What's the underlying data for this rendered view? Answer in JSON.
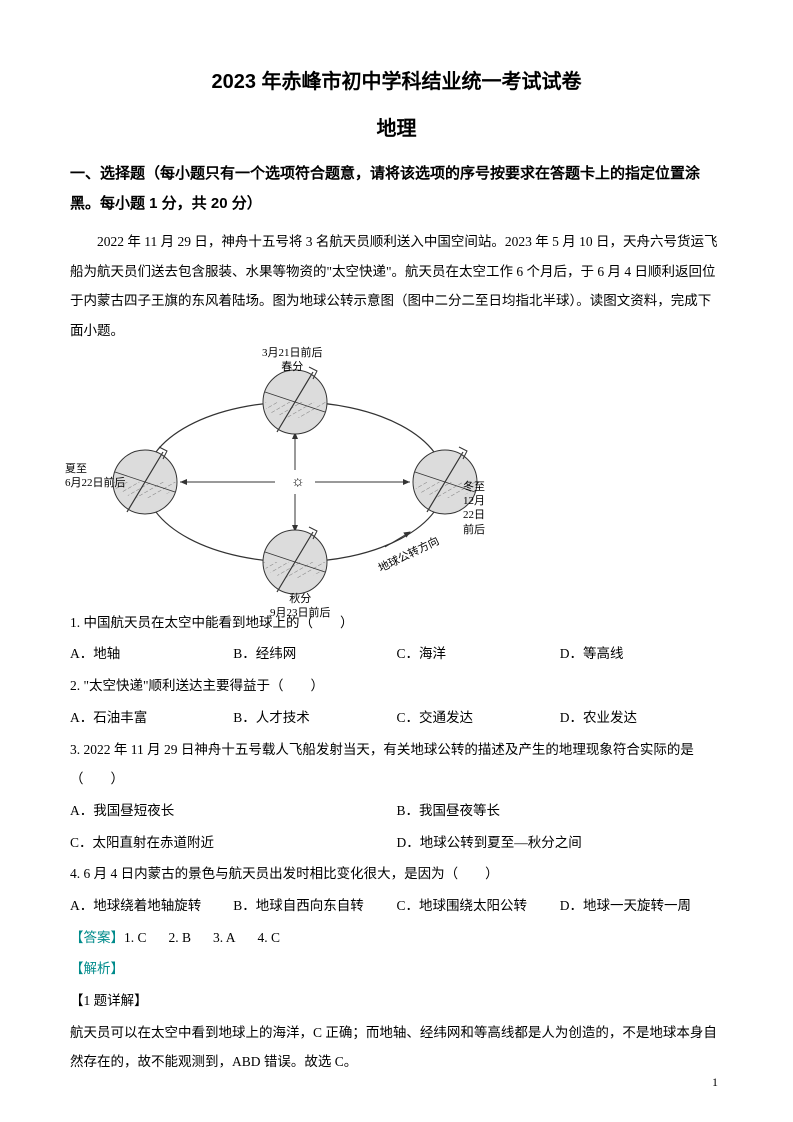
{
  "title_main": "2023 年赤峰市初中学科结业统一考试试卷",
  "title_sub": "地理",
  "section_title": "一、选择题（每小题只有一个选项符合题意，请将该选项的序号按要求在答题卡上的指定位置涂黑。每小题 1 分，共 20 分）",
  "passage": "2022 年 11 月 29 日，神舟十五号将 3 名航天员顺利送入中国空间站。2023 年 5 月 10 日，天舟六号货运飞船为航天员们送去包含服装、水果等物资的\"太空快递\"。航天员在太空工作 6 个月后，于 6 月 4 日顺利返回位于内蒙古四子王旗的东风着陆场。图为地球公转示意图（图中二分二至日均指北半球）。读图文资料，完成下面小题。",
  "diagram": {
    "labels": {
      "top": "3月21日前后\n春分",
      "left": "夏至\n6月22日前后",
      "right": "冬至\n12月22日前后",
      "bottom": "秋分\n9月23日前后",
      "orbit_direction": "地球公转方向"
    },
    "colors": {
      "globe_fill": "#d0d0d0",
      "line": "#333333"
    }
  },
  "q1": {
    "text": "1. 中国航天员在太空中能看到地球上的（　　）",
    "opts": {
      "a": "A．地轴",
      "b": "B．经纬网",
      "c": "C．海洋",
      "d": "D．等高线"
    }
  },
  "q2": {
    "text": "2. \"太空快递\"顺利送达主要得益于（　　）",
    "opts": {
      "a": "A．石油丰富",
      "b": "B．人才技术",
      "c": "C．交通发达",
      "d": "D．农业发达"
    }
  },
  "q3": {
    "text": "3. 2022 年 11 月 29 日神舟十五号载人飞船发射当天，有关地球公转的描述及产生的地理现象符合实际的是（　　）",
    "opts": {
      "a": "A．我国昼短夜长",
      "b": "B．我国昼夜等长",
      "c": "C．太阳直射在赤道附近",
      "d": "D．地球公转到夏至—秋分之间"
    }
  },
  "q4": {
    "text": "4. 6 月 4 日内蒙古的景色与航天员出发时相比变化很大，是因为（　　）",
    "opts": {
      "a": "A．地球绕着地轴旋转",
      "b": "B．地球自西向东自转",
      "c": "C．地球围绕太阳公转",
      "d": "D．地球一天旋转一周"
    }
  },
  "answers": {
    "label": "【答案】",
    "items": {
      "a1": "1. C",
      "a2": "2. B",
      "a3": "3. A",
      "a4": "4. C"
    }
  },
  "analysis_label": "【解析】",
  "detail_label": "【1 题详解】",
  "explanation": "航天员可以在太空中看到地球上的海洋，C 正确；而地轴、经纬网和等高线都是人为创造的，不是地球本身自然存在的，故不能观测到，ABD 错误。故选 C。",
  "page_number": "1"
}
